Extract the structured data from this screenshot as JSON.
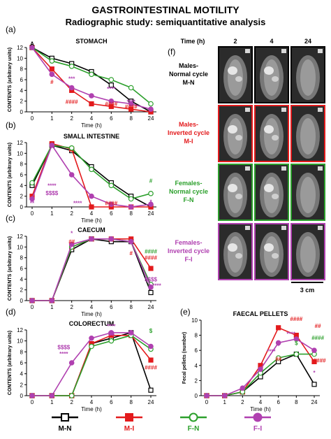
{
  "header": {
    "title": "GASTROINTESTINAL MOTILITY",
    "subtitle": "Radiographic study: semiquantitative analysis"
  },
  "colors": {
    "M-N": "#000000",
    "M-I": "#e31a1c",
    "F-N": "#2ca02c",
    "F-I": "#b040b0"
  },
  "legend": [
    {
      "key": "M-N",
      "label": "M-N"
    },
    {
      "key": "M-I",
      "label": "M-I"
    },
    {
      "key": "F-N",
      "label": "F-N"
    },
    {
      "key": "F-I",
      "label": "F-I"
    }
  ],
  "chart_data": [
    {
      "panel": "(a)",
      "type": "line",
      "title": "STOMACH",
      "xlabel": "Time (h)",
      "ylabel": "CONTENTS (arbitrary units)",
      "x": [
        "0",
        "1",
        "2",
        "4",
        "6",
        "8",
        "24"
      ],
      "ylim": [
        0,
        12
      ],
      "yticks": [
        0,
        2,
        4,
        6,
        8,
        10,
        12
      ],
      "series": [
        {
          "name": "M-N",
          "values": [
            12,
            10,
            9,
            7.5,
            5,
            2,
            0
          ]
        },
        {
          "name": "M-I",
          "values": [
            12,
            8,
            4,
            1.5,
            1,
            0.5,
            0
          ]
        },
        {
          "name": "F-N",
          "values": [
            12,
            9.5,
            8.5,
            7,
            6,
            4.5,
            1.5
          ]
        },
        {
          "name": "F-I",
          "values": [
            12,
            7,
            4.5,
            3,
            2,
            1.5,
            0.5
          ]
        }
      ],
      "annotations": [
        {
          "text": "A",
          "x": 0,
          "y": 12.3,
          "color": "M-N"
        },
        {
          "text": "#",
          "x": 1,
          "y": 5.2,
          "color": "M-I"
        },
        {
          "text": "***",
          "x": 2,
          "y": 5.8,
          "color": "F-I"
        },
        {
          "text": "****",
          "x": 4,
          "y": 3.9,
          "color": "F-I"
        },
        {
          "text": "####",
          "x": 2,
          "y": 1.5,
          "color": "M-I"
        },
        {
          "text": "####",
          "x": 4,
          "y": 1.1,
          "color": "M-I"
        },
        {
          "text": "****",
          "x": 5,
          "y": 1.5,
          "color": "F-I"
        },
        {
          "text": "####",
          "x": 5,
          "y": 0.6,
          "color": "M-I"
        }
      ]
    },
    {
      "panel": "(b)",
      "type": "line",
      "title": "SMALL INTESTINE",
      "xlabel": "Time (h)",
      "ylabel": "CONTENTS (arbitrary units)",
      "x": [
        "0",
        "1",
        "2",
        "4",
        "6",
        "8",
        "24"
      ],
      "ylim": [
        0,
        12
      ],
      "yticks": [
        0,
        2,
        4,
        6,
        8,
        10,
        12
      ],
      "series": [
        {
          "name": "M-N",
          "values": [
            4,
            11.5,
            10.5,
            7.5,
            4.5,
            2,
            0
          ]
        },
        {
          "name": "M-I",
          "values": [
            2,
            11.8,
            10.8,
            0,
            0,
            0,
            0
          ]
        },
        {
          "name": "F-N",
          "values": [
            4.5,
            11.5,
            11,
            7,
            4,
            1.5,
            2.5
          ]
        },
        {
          "name": "F-I",
          "values": [
            1.5,
            11.5,
            6,
            2,
            0.5,
            0,
            0.5
          ]
        }
      ],
      "annotations": [
        {
          "text": "**",
          "x": 0,
          "y": 0.3,
          "color": "F-I"
        },
        {
          "text": "****",
          "x": 1,
          "y": 3.6,
          "color": "F-I"
        },
        {
          "text": "$$$$",
          "x": 1,
          "y": 2.2,
          "color": "F-I"
        },
        {
          "text": "****",
          "x": 2.3,
          "y": 0.3,
          "color": "F-I"
        },
        {
          "text": "####",
          "x": 4,
          "y": 0.3,
          "color": "M-I"
        },
        {
          "text": "#",
          "x": 6,
          "y": 4.5,
          "color": "F-N"
        },
        {
          "text": "*",
          "x": 6,
          "y": 0.6,
          "color": "F-I"
        }
      ]
    },
    {
      "panel": "(c)",
      "type": "line",
      "title": "CAECUM",
      "xlabel": "Time (h)",
      "ylabel": "CONTENTS (arbitrary units)",
      "x": [
        "0",
        "1",
        "2",
        "4",
        "6",
        "8",
        "24"
      ],
      "ylim": [
        0,
        12
      ],
      "yticks": [
        0,
        2,
        4,
        6,
        8,
        10,
        12
      ],
      "series": [
        {
          "name": "M-N",
          "values": [
            0,
            0,
            9.5,
            11.5,
            11,
            11,
            1.5
          ]
        },
        {
          "name": "M-I",
          "values": [
            0,
            0,
            10,
            11.5,
            11.5,
            11.5,
            6
          ]
        },
        {
          "name": "F-N",
          "values": [
            0,
            0,
            10,
            11.5,
            11.5,
            11,
            3
          ]
        },
        {
          "name": "F-I",
          "values": [
            0,
            0,
            10.5,
            11.5,
            11.5,
            11,
            2.5
          ]
        }
      ],
      "annotations": [
        {
          "text": "*",
          "x": 2,
          "y": 12.2,
          "color": "F-I"
        },
        {
          "text": "##",
          "x": 2,
          "y": 10.6,
          "color": "M-I"
        },
        {
          "text": "#",
          "x": 5,
          "y": 8.5,
          "color": "M-I"
        },
        {
          "text": "####",
          "x": 6,
          "y": 8.8,
          "color": "F-N"
        },
        {
          "text": "####",
          "x": 6,
          "y": 7.6,
          "color": "M-I"
        },
        {
          "text": "$$$$",
          "x": 6,
          "y": 3.6,
          "color": "F-I"
        },
        {
          "text": "****",
          "x": 6.3,
          "y": 2.4,
          "color": "F-I"
        }
      ]
    },
    {
      "panel": "(d)",
      "type": "line",
      "title": "COLORECTUM",
      "xlabel": "Time (h)",
      "ylabel": "CONTENTS (arbitrary units)",
      "x": [
        "0",
        "1",
        "2",
        "4",
        "6",
        "8",
        "24"
      ],
      "ylim": [
        0,
        12
      ],
      "yticks": [
        0,
        2,
        4,
        6,
        8,
        10,
        12
      ],
      "series": [
        {
          "name": "M-N",
          "values": [
            0,
            0,
            0,
            9.5,
            10.5,
            11.5,
            1
          ]
        },
        {
          "name": "M-I",
          "values": [
            0,
            0,
            0,
            9.5,
            11,
            11,
            6.5
          ]
        },
        {
          "name": "F-N",
          "values": [
            0,
            0,
            0,
            9,
            10,
            11,
            8.5
          ]
        },
        {
          "name": "F-I",
          "values": [
            0,
            0,
            6,
            10.5,
            11.5,
            11.5,
            9
          ]
        }
      ],
      "annotations": [
        {
          "text": "****",
          "x": 4,
          "y": 12.3,
          "color": "F-I"
        },
        {
          "text": "$$",
          "x": 4,
          "y": 11,
          "color": "F-I"
        },
        {
          "text": "$$$$",
          "x": 1.6,
          "y": 8.5,
          "color": "F-I"
        },
        {
          "text": "****",
          "x": 1.6,
          "y": 7.3,
          "color": "F-I"
        },
        {
          "text": "$",
          "x": 6,
          "y": 11.5,
          "color": "F-N"
        },
        {
          "text": "####",
          "x": 6,
          "y": 4.8,
          "color": "M-I"
        }
      ]
    },
    {
      "panel": "(e)",
      "type": "line",
      "title": "FAECAL PELLETS",
      "xlabel": "Time (h)",
      "ylabel": "Fecal pellets (number)",
      "x": [
        "0",
        "1",
        "2",
        "4",
        "6",
        "8",
        "24"
      ],
      "ylim": [
        0,
        10
      ],
      "yticks": [
        0,
        2,
        4,
        6,
        8,
        10
      ],
      "series": [
        {
          "name": "M-N",
          "values": [
            0,
            0,
            0.5,
            2.5,
            4.5,
            5.5,
            1.5
          ]
        },
        {
          "name": "M-I",
          "values": [
            0,
            0,
            0.5,
            4,
            9,
            8,
            4.5
          ]
        },
        {
          "name": "F-N",
          "values": [
            0,
            0,
            0.5,
            3,
            5,
            5.5,
            5.5
          ]
        },
        {
          "name": "F-I",
          "values": [
            0,
            0,
            1,
            3.5,
            7,
            7.5,
            6
          ]
        }
      ],
      "annotations": [
        {
          "text": "$",
          "x": 4,
          "y": 6.6,
          "color": "F-I"
        },
        {
          "text": "****",
          "x": 3.6,
          "y": 5.6,
          "color": "F-I"
        },
        {
          "text": "##",
          "x": 4,
          "y": 4.6,
          "color": "M-I"
        },
        {
          "text": "####",
          "x": 5,
          "y": 9.9,
          "color": "M-I"
        },
        {
          "text": "****",
          "x": 4.7,
          "y": 7.9,
          "color": "F-I"
        },
        {
          "text": "$",
          "x": 5,
          "y": 6.7,
          "color": "F-N"
        },
        {
          "text": "##",
          "x": 6.2,
          "y": 9,
          "color": "M-I"
        },
        {
          "text": "####",
          "x": 6.2,
          "y": 7.4,
          "color": "F-N"
        },
        {
          "text": "####",
          "x": 6.3,
          "y": 4.4,
          "color": "M-I"
        },
        {
          "text": "*",
          "x": 6,
          "y": 2.8,
          "color": "F-I"
        }
      ]
    }
  ],
  "xray_panel": {
    "label": "(f)",
    "time_header": "Time (h)",
    "times": [
      "2",
      "4",
      "24"
    ],
    "rows": [
      {
        "label_lines": [
          "Males-",
          "Normal cycle",
          "M-N"
        ],
        "color": "M-N"
      },
      {
        "label_lines": [
          "Males-",
          "Inverted cycle",
          "M-I"
        ],
        "color": "M-I"
      },
      {
        "label_lines": [
          "Females-",
          "Normal cycle",
          "F-N"
        ],
        "color": "F-N"
      },
      {
        "label_lines": [
          "Females-",
          "Inverted cycle",
          "F-I"
        ],
        "color": "F-I"
      }
    ],
    "scale_label": "3 cm"
  }
}
